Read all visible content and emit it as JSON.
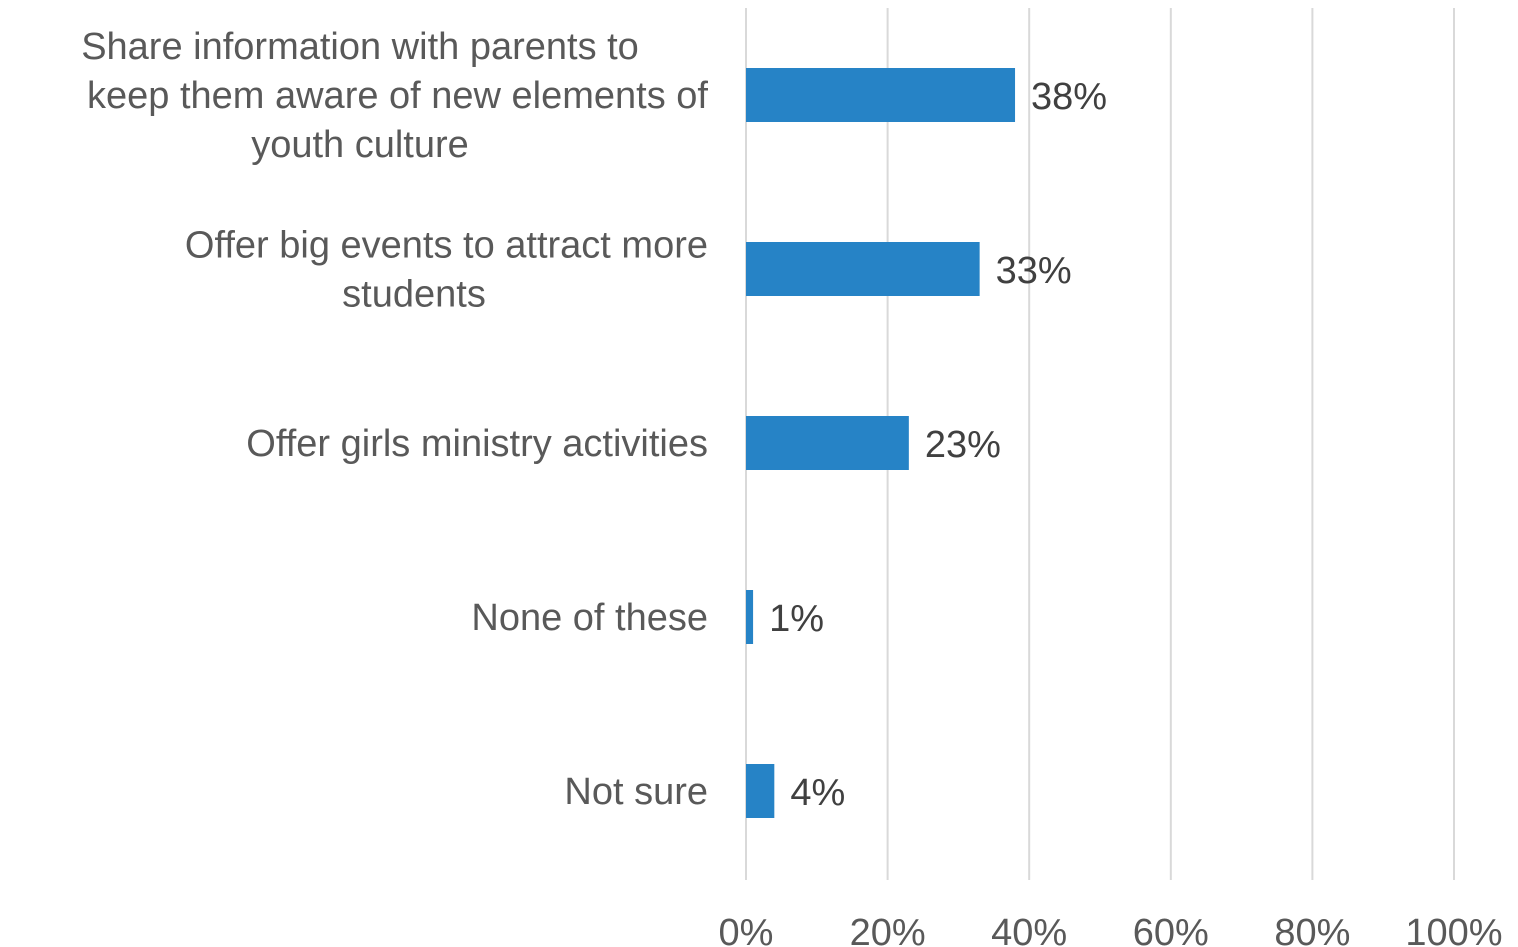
{
  "chart_data": {
    "type": "bar",
    "orientation": "horizontal",
    "categories": [
      [
        "Share information with parents to",
        "keep them aware of new elements of",
        "youth culture"
      ],
      [
        "Offer big events to attract more",
        "students"
      ],
      [
        "Offer girls ministry activities"
      ],
      [
        "None of these"
      ],
      [
        "Not sure"
      ]
    ],
    "values": [
      38,
      33,
      23,
      1,
      4
    ],
    "value_labels": [
      "38%",
      "33%",
      "23%",
      "1%",
      "4%"
    ],
    "xlim": [
      0,
      100
    ],
    "x_ticks": [
      0,
      20,
      40,
      60,
      80,
      100
    ],
    "x_tick_labels": [
      "0%",
      "20%",
      "40%",
      "60%",
      "80%",
      "100%"
    ],
    "grid": true,
    "bar_color": "#2683C6",
    "grid_color": "#D9D9D9"
  }
}
